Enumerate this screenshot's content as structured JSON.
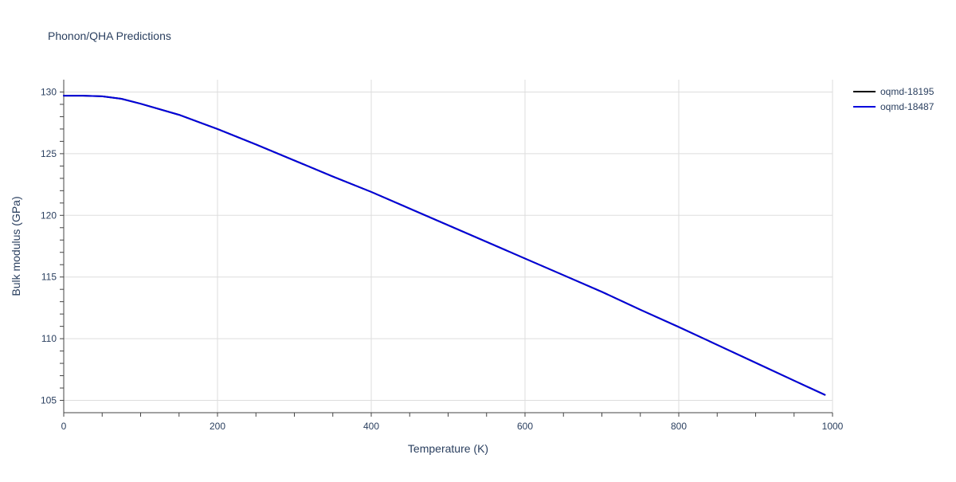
{
  "chart_data": {
    "type": "line",
    "title": "Phonon/QHA Predictions",
    "xlabel": "Temperature (K)",
    "ylabel": "Bulk modulus (GPa)",
    "xlim": [
      0,
      1000
    ],
    "ylim": [
      104.0,
      131.0
    ],
    "x_ticks": [
      0,
      200,
      400,
      600,
      800,
      1000
    ],
    "y_ticks": [
      105,
      110,
      115,
      120,
      125,
      130
    ],
    "x_tick_labels": [
      "0",
      "200",
      "400",
      "600",
      "800",
      "1000"
    ],
    "y_tick_labels": [
      "105",
      "110",
      "115",
      "120",
      "125",
      "130"
    ],
    "grid": true,
    "legend_position": "top-right",
    "series": [
      {
        "name": "oqmd-18195",
        "color": "#000000",
        "x": [
          0,
          25,
          50,
          75,
          100,
          150,
          200,
          250,
          300,
          350,
          400,
          450,
          500,
          550,
          600,
          650,
          700,
          750,
          800,
          850,
          900,
          950,
          990
        ],
        "y": [
          129.7,
          129.7,
          129.65,
          129.45,
          129.05,
          128.15,
          127.0,
          125.75,
          124.45,
          123.15,
          121.9,
          120.55,
          119.2,
          117.85,
          116.5,
          115.15,
          113.8,
          112.35,
          110.95,
          109.5,
          108.05,
          106.6,
          105.45
        ]
      },
      {
        "name": "oqmd-18487",
        "color": "#0000dd",
        "x": [
          0,
          25,
          50,
          75,
          100,
          150,
          200,
          250,
          300,
          350,
          400,
          450,
          500,
          550,
          600,
          650,
          700,
          750,
          800,
          850,
          900,
          950,
          990
        ],
        "y": [
          129.7,
          129.7,
          129.65,
          129.45,
          129.05,
          128.15,
          127.0,
          125.75,
          124.45,
          123.15,
          121.9,
          120.55,
          119.2,
          117.85,
          116.5,
          115.15,
          113.8,
          112.35,
          110.95,
          109.5,
          108.05,
          106.6,
          105.45
        ]
      }
    ]
  }
}
